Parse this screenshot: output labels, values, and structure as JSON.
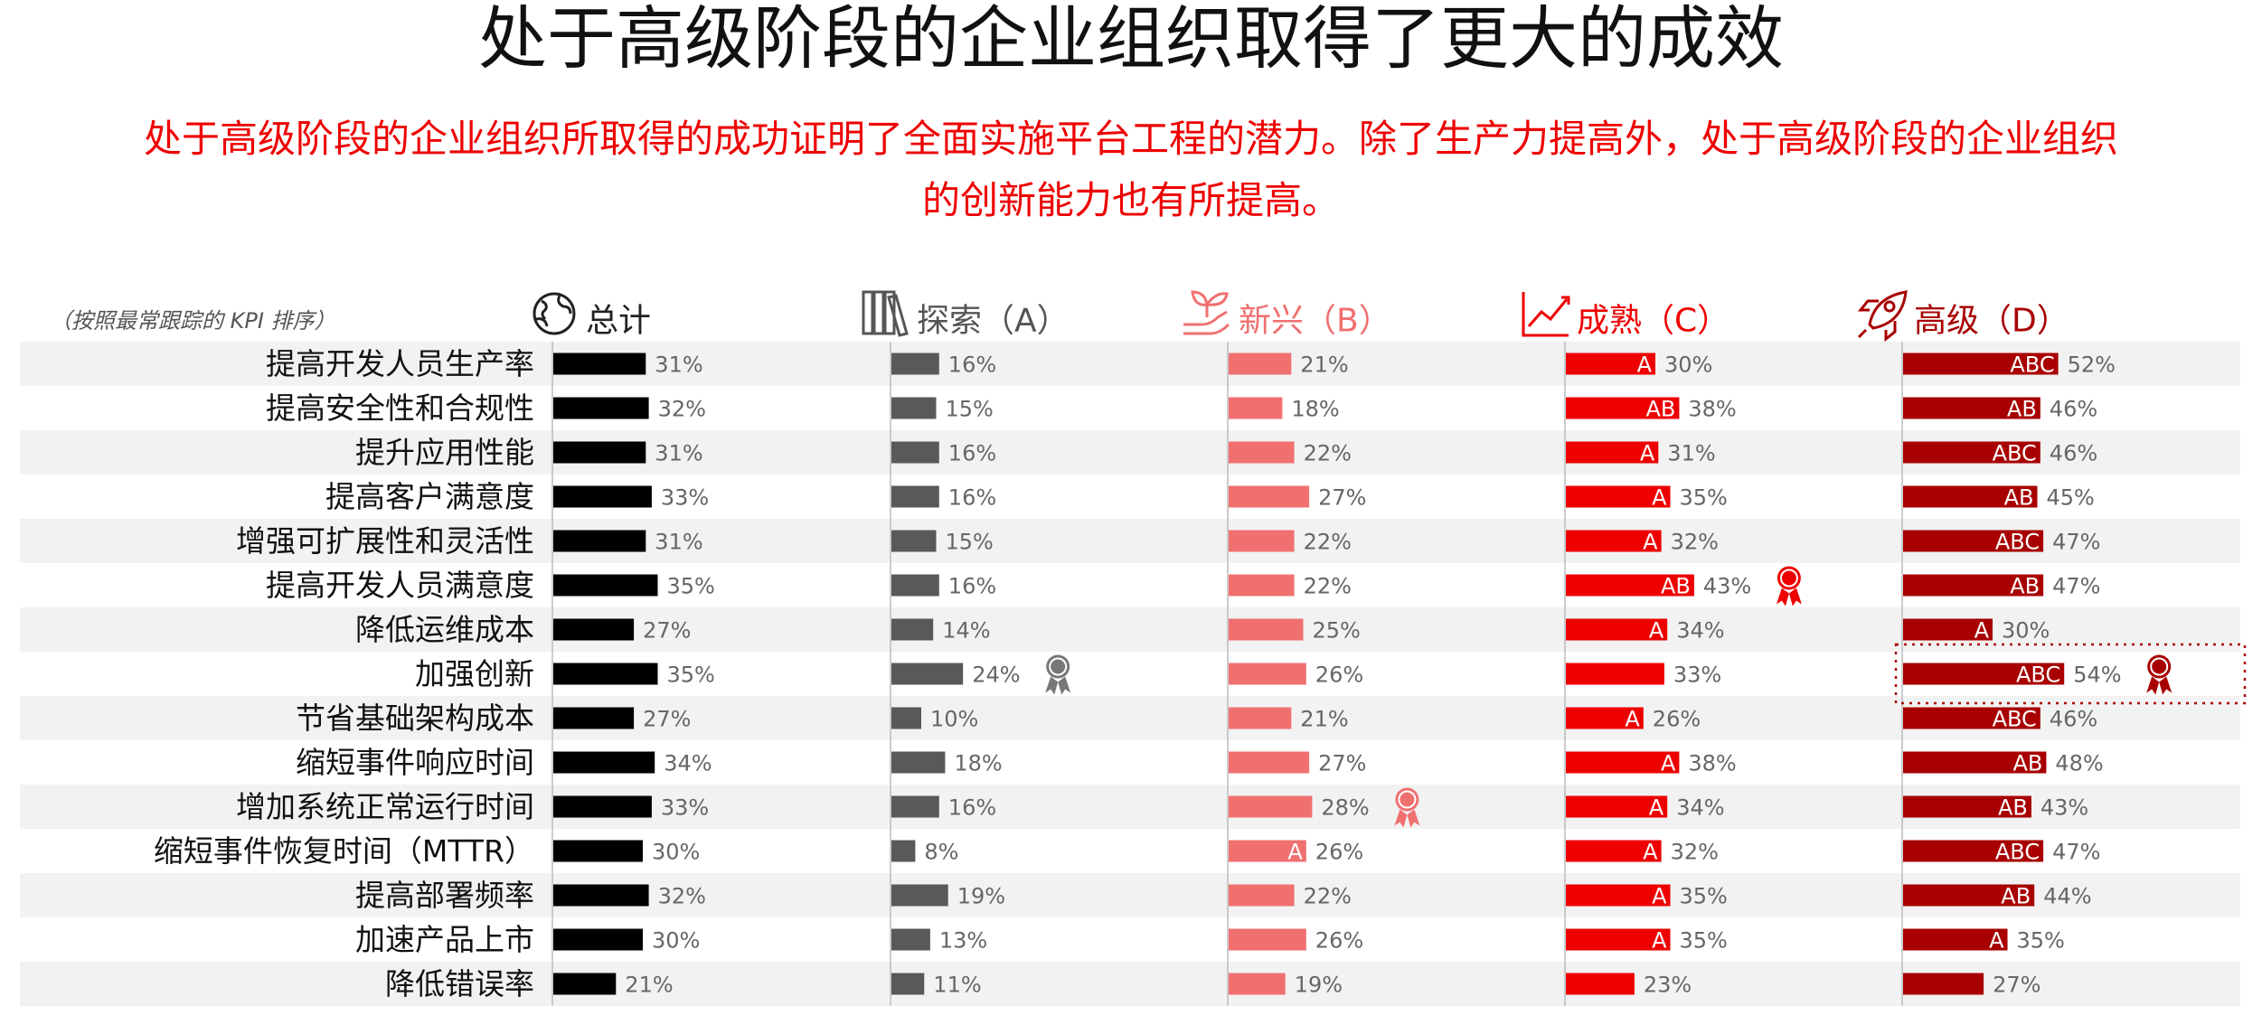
{
  "title": "处于高级阶段的企业组织取得了更大的成效",
  "subtitle": "处于高级阶段的企业组织所取得的成功证明了全面实施平台工程的潜力。除了生产力提高外，处于高级阶段的企业组织的创新能力也有所提高。",
  "chart_data": {
    "type": "bar",
    "orientation": "horizontal",
    "note": "（按照最常跟踪的 KPI 排序）",
    "categories": [
      "提高开发人员生产率",
      "提高安全性和合规性",
      "提升应用性能",
      "提高客户满意度",
      "增强可扩展性和灵活性",
      "提高开发人员满意度",
      "降低运维成本",
      "加强创新",
      "节省基础架构成本",
      "缩短事件响应时间",
      "增加系统正常运行时间",
      "缩短事件恢复时间（MTTR）",
      "提高部署频率",
      "加速产品上市",
      "降低错误率"
    ],
    "series": [
      {
        "name": "总计",
        "icon": "globe-icon",
        "color": "#000000",
        "title_color": "#222222",
        "values": [
          31,
          32,
          31,
          33,
          31,
          35,
          27,
          35,
          27,
          34,
          33,
          30,
          32,
          30,
          21
        ],
        "labels": [
          "",
          "",
          "",
          "",
          "",
          "",
          "",
          "",
          "",
          "",
          "",
          "",
          "",
          "",
          ""
        ],
        "award_index": null
      },
      {
        "name": "探索（A）",
        "icon": "books-icon",
        "color": "#595959",
        "title_color": "#555555",
        "values": [
          16,
          15,
          16,
          16,
          15,
          16,
          14,
          24,
          10,
          18,
          16,
          8,
          19,
          13,
          11
        ],
        "labels": [
          "",
          "",
          "",
          "",
          "",
          "",
          "",
          "",
          "",
          "",
          "",
          "",
          "",
          "",
          ""
        ],
        "award_index": 7
      },
      {
        "name": "新兴（B）",
        "icon": "sprout-icon",
        "color": "#f07070",
        "title_color": "#f07070",
        "values": [
          21,
          18,
          22,
          27,
          22,
          22,
          25,
          26,
          21,
          27,
          28,
          26,
          22,
          26,
          19
        ],
        "labels": [
          "",
          "",
          "",
          "",
          "",
          "",
          "",
          "",
          "",
          "",
          "",
          "A",
          "",
          "",
          ""
        ],
        "award_index": 10
      },
      {
        "name": "成熟（C）",
        "icon": "trend-icon",
        "color": "#ee0000",
        "title_color": "#ee0000",
        "values": [
          30,
          38,
          31,
          35,
          32,
          43,
          34,
          33,
          26,
          38,
          34,
          32,
          35,
          35,
          23
        ],
        "labels": [
          "A",
          "AB",
          "A",
          "A",
          "A",
          "AB",
          "A",
          "",
          "A",
          "A",
          "A",
          "A",
          "A",
          "A",
          ""
        ],
        "award_index": 5
      },
      {
        "name": "高级（D）",
        "icon": "rocket-icon",
        "color": "#a80000",
        "title_color": "#a80000",
        "values": [
          52,
          46,
          46,
          45,
          47,
          47,
          30,
          54,
          46,
          48,
          43,
          47,
          44,
          35,
          27
        ],
        "labels": [
          "ABC",
          "AB",
          "ABC",
          "AB",
          "ABC",
          "AB",
          "A",
          "ABC",
          "ABC",
          "AB",
          "AB",
          "ABC",
          "AB",
          "A",
          ""
        ],
        "award_index": 7,
        "highlight_index": 7
      }
    ],
    "award_icon": "award-ribbon-icon",
    "xlim": [
      0,
      100
    ],
    "grid": false,
    "legend": "none"
  }
}
